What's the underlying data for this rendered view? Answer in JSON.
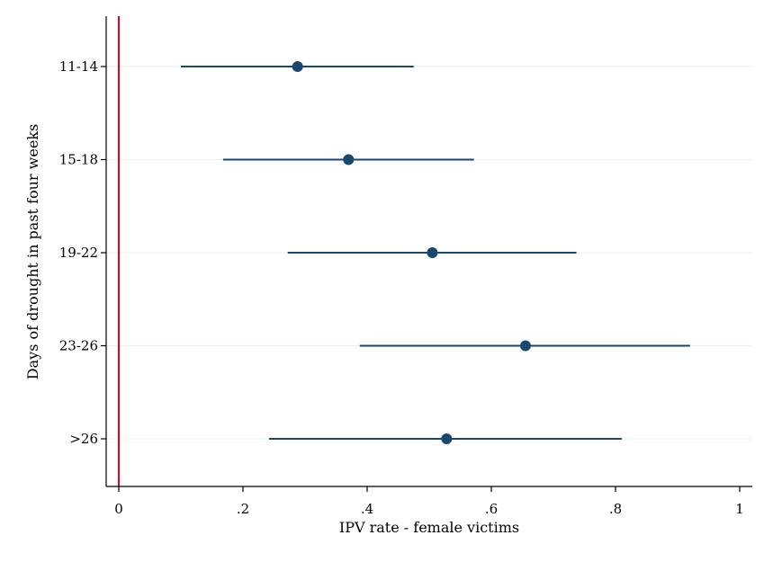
{
  "chart_data": {
    "type": "scatter",
    "orientation": "horizontal",
    "subtype": "coefficient plot with confidence intervals",
    "xlabel": "IPV rate - female victims",
    "ylabel": "Days of drought in past four weeks",
    "xlim": [
      0,
      1
    ],
    "x_ticks": [
      0,
      0.2,
      0.4,
      0.6,
      0.8,
      1
    ],
    "x_tick_labels": [
      "0",
      ".2",
      ".4",
      ".6",
      ".8",
      "1"
    ],
    "categories": [
      "11-14",
      "15-18",
      "19-22",
      "23-26",
      ">26"
    ],
    "estimates": [
      0.288,
      0.37,
      0.505,
      0.655,
      0.528
    ],
    "ci_low": [
      0.1,
      0.168,
      0.272,
      0.388,
      0.242
    ],
    "ci_high": [
      0.475,
      0.572,
      0.737,
      0.92,
      0.81
    ],
    "reference_line_x": 0,
    "grid": true,
    "grid_axis": "y",
    "colors": {
      "series": "#1a476f",
      "reference_line": "#e8001a",
      "grid": "#eaf2f3",
      "axis": "#000000"
    }
  }
}
